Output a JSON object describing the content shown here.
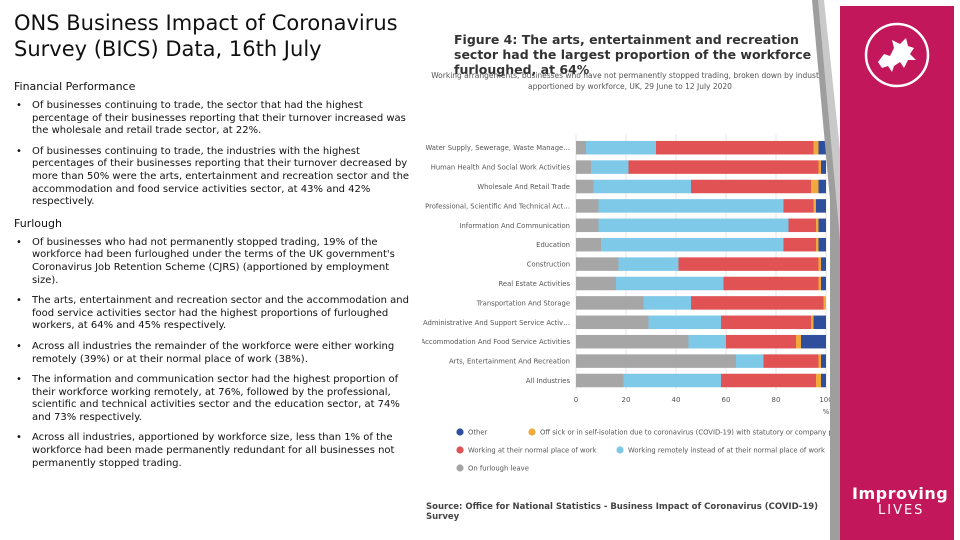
{
  "page": {
    "title": "ONS Business Impact of Coronavirus Survey (BICS) Data, 16th July"
  },
  "left": {
    "sections": [
      {
        "heading": "Financial Performance",
        "bullets": [
          "Of businesses continuing to trade, the sector that had the highest percentage of their businesses reporting that their turnover increased was the wholesale and retail trade sector, at 22%.",
          "Of businesses continuing to trade, the industries with the highest percentages of their businesses reporting that their turnover decreased by more than 50% were the arts, entertainment and recreation sector and the accommodation and food service activities sector, at 43% and 42% respectively."
        ]
      },
      {
        "heading": "Furlough",
        "bullets": [
          "Of businesses who had not permanently stopped trading, 19% of the workforce had been furloughed under the terms of the UK government's Coronavirus Job Retention Scheme (CJRS) (apportioned by employment size).",
          "The arts, entertainment and recreation sector and the accommodation and food service activities sector had the highest proportions of furloughed workers, at 64% and 45% respectively.",
          "Across all industries the remainder of the workforce were either working remotely (39%) or at their normal place of work (38%).",
          "The information and communication sector had the highest proportion of their workforce working remotely, at 76%, followed by the professional, scientific and technical activities sector and the education sector, at 74% and 73% respectively.",
          "Across all industries, apportioned by workforce size, less than 1% of the workforce had been made permanently redundant for all businesses not permanently stopped trading."
        ]
      }
    ],
    "bullet_glyph": "•"
  },
  "chart_data": {
    "type": "bar",
    "orientation": "horizontal",
    "stacked": true,
    "title": "Figure 4: The arts, entertainment and recreation sector had the largest proportion of the workforce furloughed, at 64%",
    "subtitle": "Working arrangements, businesses who have not permanently stopped trading, broken down by industry, apportioned by workforce, UK, 29 June to 12 July 2020",
    "categories": [
      "Water Supply, Sewerage, Waste Manage…",
      "Human Health And Social Work Activities",
      "Wholesale And Retail Trade",
      "Professional, Scientific And Technical Act…",
      "Information And Communication",
      "Education",
      "Construction",
      "Real Estate Activities",
      "Transportation And Storage",
      "Administrative And Support Service Activ…",
      "Accommodation And Food Service Activities",
      "Arts, Entertainment And Recreation",
      "All Industries"
    ],
    "series": [
      {
        "name": "On furlough leave",
        "color": "#a6a6a6",
        "values": [
          4,
          6,
          7,
          9,
          9,
          10,
          17,
          16,
          27,
          29,
          45,
          64,
          19
        ]
      },
      {
        "name": "Working remotely instead of at their normal place of work",
        "color": "#7ec8e8",
        "values": [
          28,
          15,
          39,
          74,
          76,
          73,
          24,
          43,
          19,
          29,
          15,
          11,
          39
        ]
      },
      {
        "name": "Working at their normal place of work",
        "color": "#e05254",
        "values": [
          63,
          76,
          48,
          12,
          11,
          13,
          56,
          38,
          53,
          36,
          28,
          22,
          38
        ]
      },
      {
        "name": "Off sick or in self-isolation due to coronavirus (COVID-19) with statutory or company pay",
        "color": "#f2a93b",
        "values": [
          2,
          1,
          3,
          1,
          1,
          1,
          1,
          1,
          1,
          1,
          2,
          1,
          2
        ]
      },
      {
        "name": "Other",
        "color": "#2f4e9c",
        "values": [
          3,
          2,
          3,
          4,
          3,
          3,
          2,
          2,
          0,
          5,
          10,
          2,
          2
        ]
      }
    ],
    "xlim": [
      0,
      100
    ],
    "xticks": [
      0,
      20,
      40,
      60,
      80,
      100
    ],
    "xunit": "%",
    "legend_order": [
      "Other",
      "Off sick or in self-isolation due to coronavirus (COVID-19) with statutory or company pay",
      "Working at their normal place of work",
      "Working remotely instead of at their normal place of work",
      "On furlough leave"
    ],
    "source": "Source: Office for National Statistics - Business Impact of Coronavirus (COVID-19) Survey"
  },
  "brand": {
    "line1": "Improving",
    "line2": "LIVES",
    "panel_color": "#c2185b",
    "logo_icon": "welsh-dragon-icon"
  }
}
